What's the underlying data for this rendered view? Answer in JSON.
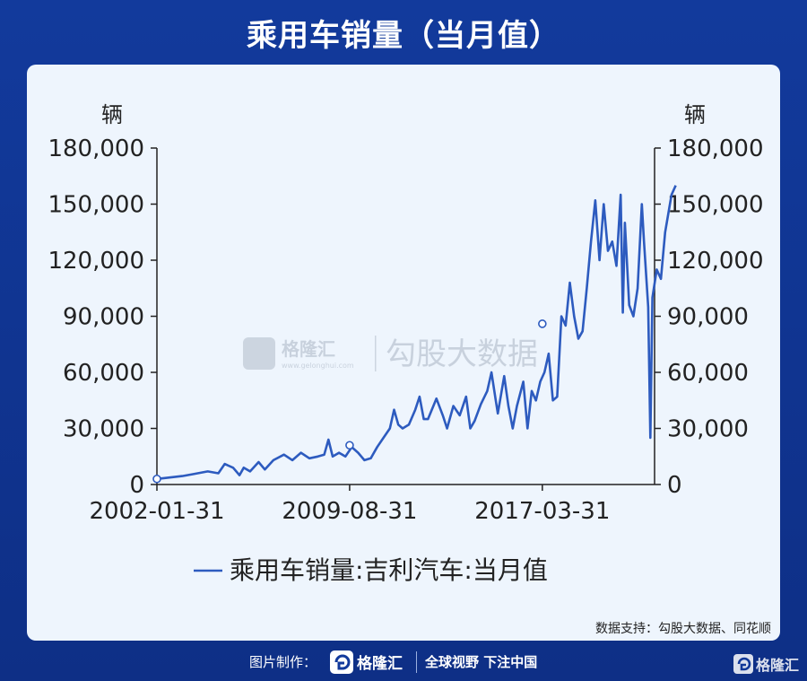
{
  "page": {
    "title": "乘用车销量（当月值）",
    "source": "数据支持：勾股大数据、同花顺",
    "footer_label": "图片制作：",
    "footer_slogan": "全球视野 下注中国",
    "watermark_logo": "格隆汇",
    "watermark_site": "www.gelonghui.com",
    "watermark_text": "勾股大数据"
  },
  "colors": {
    "line": "#2d5bbf",
    "background": "#eef5fd",
    "header": "#123a9c"
  },
  "chart_data": {
    "type": "line",
    "title": "",
    "left_unit": "辆",
    "right_unit": "辆",
    "ylim": [
      0,
      180000
    ],
    "y_ticks": [
      0,
      30000,
      60000,
      90000,
      120000,
      150000,
      180000
    ],
    "y_tick_labels": [
      "0",
      "30,000",
      "60,000",
      "90,000",
      "120,000",
      "150,000",
      "180,000"
    ],
    "x_tick_labels": [
      "2002-01-31",
      "2009-08-31",
      "2017-03-31"
    ],
    "xlim": [
      "2002-01",
      "2021-08"
    ],
    "grid": false,
    "legend": "bottom",
    "series": [
      {
        "name": "乘用车销量:吉利汽车:当月值",
        "points": [
          [
            "2002-01",
            3000
          ],
          [
            "2003-01",
            4500
          ],
          [
            "2003-06",
            5500
          ],
          [
            "2004-01",
            7000
          ],
          [
            "2004-06",
            6000
          ],
          [
            "2004-09",
            11000
          ],
          [
            "2005-01",
            9000
          ],
          [
            "2005-04",
            5000
          ],
          [
            "2005-06",
            9000
          ],
          [
            "2005-09",
            7000
          ],
          [
            "2006-01",
            12000
          ],
          [
            "2006-04",
            8000
          ],
          [
            "2006-08",
            13000
          ],
          [
            "2007-01",
            16000
          ],
          [
            "2007-05",
            13000
          ],
          [
            "2007-09",
            17000
          ],
          [
            "2008-01",
            14000
          ],
          [
            "2008-05",
            15000
          ],
          [
            "2008-08",
            16000
          ],
          [
            "2008-10",
            24000
          ],
          [
            "2008-12",
            15000
          ],
          [
            "2009-03",
            17000
          ],
          [
            "2009-06",
            15000
          ],
          [
            "2009-09",
            20000
          ],
          [
            "2009-12",
            17000
          ],
          [
            "2010-03",
            13000
          ],
          [
            "2010-06",
            14000
          ],
          [
            "2010-09",
            20000
          ],
          [
            "2010-12",
            25000
          ],
          [
            "2011-03",
            30000
          ],
          [
            "2011-05",
            40000
          ],
          [
            "2011-07",
            32000
          ],
          [
            "2011-09",
            30000
          ],
          [
            "2011-12",
            32000
          ],
          [
            "2012-03",
            40000
          ],
          [
            "2012-05",
            47000
          ],
          [
            "2012-07",
            35000
          ],
          [
            "2012-09",
            35000
          ],
          [
            "2013-01",
            46000
          ],
          [
            "2013-04",
            37000
          ],
          [
            "2013-06",
            30000
          ],
          [
            "2013-09",
            42000
          ],
          [
            "2013-12",
            37000
          ],
          [
            "2014-03",
            47000
          ],
          [
            "2014-05",
            30000
          ],
          [
            "2014-07",
            34000
          ],
          [
            "2014-10",
            43000
          ],
          [
            "2015-01",
            50000
          ],
          [
            "2015-03",
            60000
          ],
          [
            "2015-05",
            45000
          ],
          [
            "2015-06",
            38000
          ],
          [
            "2015-09",
            58000
          ],
          [
            "2015-11",
            42000
          ],
          [
            "2016-01",
            30000
          ],
          [
            "2016-03",
            42000
          ],
          [
            "2016-06",
            55000
          ],
          [
            "2016-08",
            30000
          ],
          [
            "2016-10",
            50000
          ],
          [
            "2016-12",
            45000
          ],
          [
            "2017-02",
            55000
          ],
          [
            "2017-04",
            60000
          ],
          [
            "2017-06",
            70000
          ],
          [
            "2017-08",
            45000
          ],
          [
            "2017-10",
            47000
          ],
          [
            "2017-12",
            90000
          ],
          [
            "2018-02",
            85000
          ],
          [
            "2018-04",
            108000
          ],
          [
            "2018-06",
            90000
          ],
          [
            "2018-08",
            78000
          ],
          [
            "2018-10",
            82000
          ],
          [
            "2018-12",
            105000
          ],
          [
            "2019-02",
            130000
          ],
          [
            "2019-04",
            152000
          ],
          [
            "2019-06",
            120000
          ],
          [
            "2019-08",
            150000
          ],
          [
            "2019-10",
            125000
          ],
          [
            "2019-12",
            130000
          ],
          [
            "2020-02",
            117000
          ],
          [
            "2020-04",
            155000
          ],
          [
            "2020-05",
            92000
          ],
          [
            "2020-06",
            140000
          ],
          [
            "2020-08",
            96000
          ],
          [
            "2020-10",
            90000
          ],
          [
            "2020-12",
            105000
          ],
          [
            "2021-02",
            150000
          ],
          [
            "2021-03",
            130000
          ],
          [
            "2021-05",
            95000
          ],
          [
            "2021-06",
            25000
          ],
          [
            "2021-07",
            100000
          ],
          [
            "2021-09",
            115000
          ],
          [
            "2021-11",
            110000
          ],
          [
            "2022-01",
            135000
          ],
          [
            "2022-04",
            155000
          ],
          [
            "2022-06",
            160000
          ]
        ]
      }
    ],
    "markers": [
      [
        "2002-01",
        3000
      ],
      [
        "2009-08",
        21000
      ],
      [
        "2017-03",
        86000
      ]
    ]
  }
}
